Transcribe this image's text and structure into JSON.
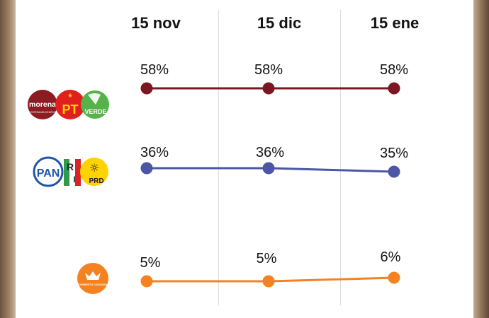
{
  "chart_data": {
    "type": "line",
    "categories": [
      "15 nov",
      "15 dic",
      "15 ene"
    ],
    "series": [
      {
        "name": "morena PT VERDE",
        "values": [
          58,
          58,
          58
        ],
        "labels": [
          "58%",
          "58%",
          "58%"
        ],
        "color": "#7a1722"
      },
      {
        "name": "PAN PRI PRD",
        "values": [
          36,
          36,
          35
        ],
        "labels": [
          "36%",
          "36%",
          "35%"
        ],
        "color": "#4b56a6"
      },
      {
        "name": "Movimiento Ciudadano",
        "values": [
          5,
          5,
          6
        ],
        "labels": [
          "5%",
          "5%",
          "6%"
        ],
        "color": "#f58220"
      }
    ]
  },
  "logos": {
    "morena": "morena",
    "morena_small": "LA ESPERANZA DE MÉXICO",
    "pt": "PT",
    "verde": "VERDE",
    "pan": "PAN",
    "pri_r": "R",
    "pri_i": "I",
    "prd": "PRD",
    "mc": "MOVIMIENTO CIUDADANO"
  },
  "colors": {
    "morena": "#8c1c22",
    "pt": "#e0201c",
    "verde": "#56b24a",
    "pan": "#1e56a5",
    "pri_green": "#2f9a48",
    "pri_red": "#d8232a",
    "prd": "#ffd300",
    "mc": "#f58220"
  }
}
